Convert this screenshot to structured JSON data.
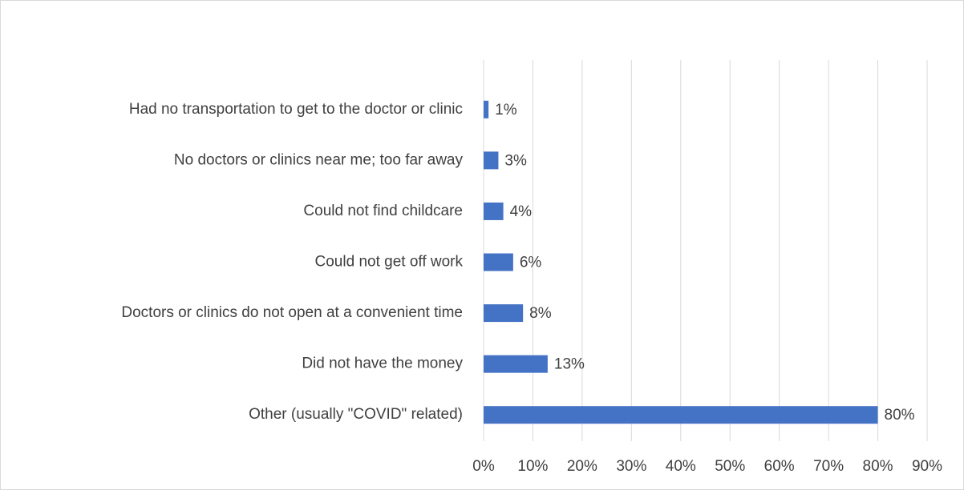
{
  "chart_data": {
    "type": "bar",
    "orientation": "horizontal",
    "categories": [
      "Had no transportation to get to the doctor or clinic",
      "No doctors or clinics near me; too far away",
      "Could not find childcare",
      "Could not get off work",
      "Doctors or clinics do not open at a convenient time",
      "Did not have the money",
      "Other (usually \"COVID\" related)"
    ],
    "values": [
      1,
      3,
      4,
      6,
      8,
      13,
      80
    ],
    "value_labels": [
      "1%",
      "3%",
      "4%",
      "6%",
      "8%",
      "13%",
      "80%"
    ],
    "color": "#4472c4",
    "xlim": [
      0,
      90
    ],
    "xticks": [
      {
        "value": 0,
        "label": "0%"
      },
      {
        "value": 10,
        "label": "10%"
      },
      {
        "value": 20,
        "label": "20%"
      },
      {
        "value": 30,
        "label": "30%"
      },
      {
        "value": 40,
        "label": "40%"
      },
      {
        "value": 50,
        "label": "50%"
      },
      {
        "value": 60,
        "label": "60%"
      },
      {
        "value": 70,
        "label": "70%"
      },
      {
        "value": 80,
        "label": "80%"
      },
      {
        "value": 90,
        "label": "90%"
      }
    ],
    "grid": true
  }
}
